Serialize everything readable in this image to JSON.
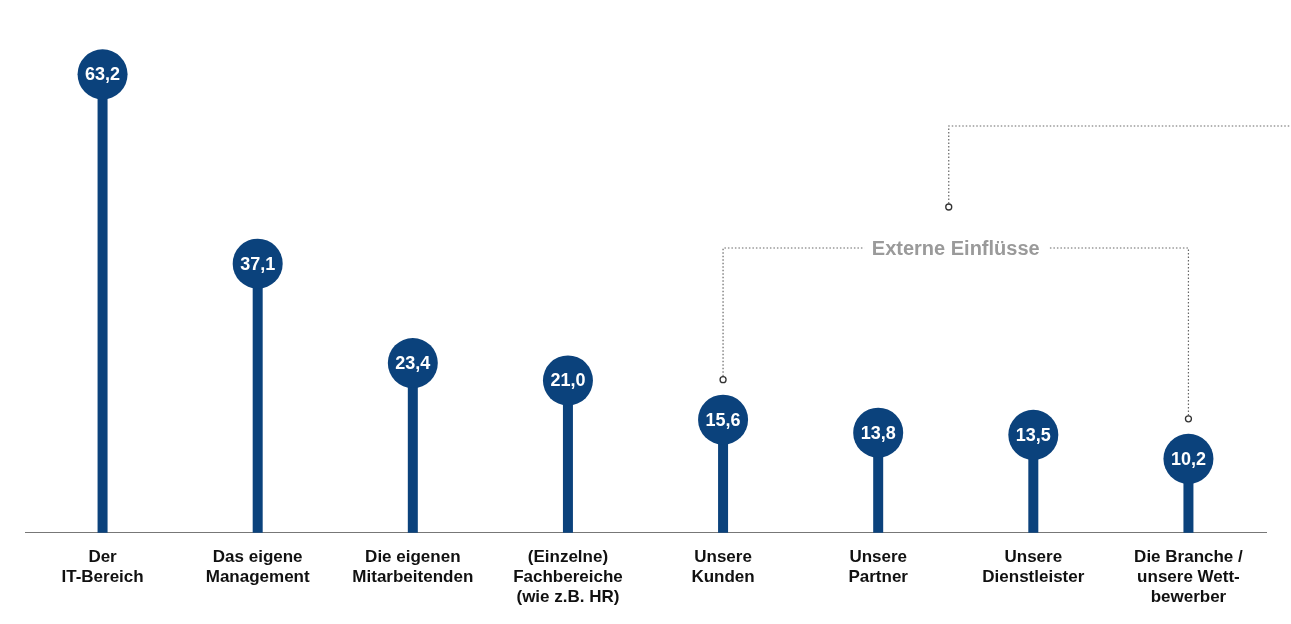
{
  "chart_data": {
    "type": "lollipop",
    "categories": [
      "Der\nIT-Bereich",
      "Das eigene\nManagement",
      "Die eigenen\nMitarbeitenden",
      "(Einzelne)\nFachbereiche\n(wie z.B. HR)",
      "Unsere\nKunden",
      "Unsere\nPartner",
      "Unsere\nDienstleister",
      "Die Branche /\nunsere Wett-\nbewerber"
    ],
    "values": [
      63.2,
      37.1,
      23.4,
      21.0,
      15.6,
      13.8,
      13.5,
      10.2
    ],
    "value_labels": [
      "63,2",
      "37,1",
      "23,4",
      "21,0",
      "15,6",
      "13,8",
      "13,5",
      "10,2"
    ],
    "color": "#0b427c",
    "tick_labels": "x",
    "grid": false,
    "legend": false,
    "marker": "circle",
    "annotations": [
      "Externe Einflüsse"
    ]
  }
}
